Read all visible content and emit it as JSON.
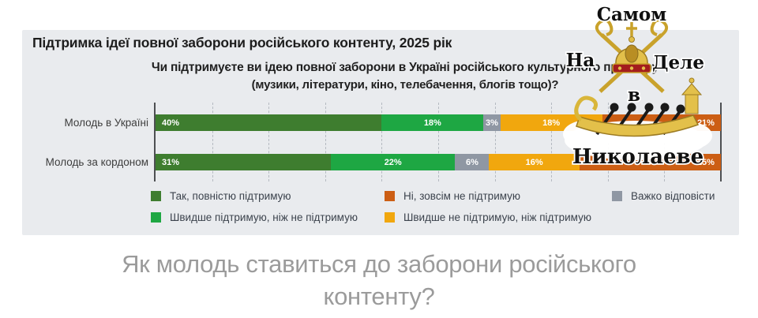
{
  "chart_data": {
    "type": "bar",
    "stacked": true,
    "orientation": "horizontal",
    "title": "Підтримка ідеї повної заборони російського контенту, 2025 рік",
    "subtitle_line1": "Чи підтримуєте ви ідею повної заборони в Україні російського культурного простору",
    "subtitle_line2": "(музики, літератури, кіно, телебачення, блогів тощо)?",
    "categories": [
      "Молодь в Україні",
      "Молодь за кордоном"
    ],
    "series": [
      {
        "name": "Так, повністю підтримую",
        "color": "#3e7d2f",
        "values": [
          40,
          31
        ]
      },
      {
        "name": "Швидше підтримую, ніж не підтримую",
        "color": "#1ea743",
        "values": [
          18,
          22
        ]
      },
      {
        "name": "Важко відповісти",
        "color": "#8f97a3",
        "values": [
          3,
          6
        ]
      },
      {
        "name": "Швидше не підтримую, ніж підтримую",
        "color": "#f1a70e",
        "values": [
          18,
          16
        ]
      },
      {
        "name": "Ні, зовсім не підтримую",
        "color": "#cc5e14",
        "values": [
          21,
          25
        ]
      }
    ],
    "xlim": [
      0,
      100
    ],
    "gridline_step": 10,
    "value_suffix": "%",
    "grid": true,
    "legend_position": "bottom"
  },
  "caption": {
    "line1": "Як молодь ставиться до заборони російського",
    "line2": "контенту?"
  },
  "watermark": {
    "word1": "Самом",
    "word2": "На",
    "word3": "Деле",
    "word4": "в",
    "word5": "Николаеве"
  },
  "colors": {
    "panel_background": "#e9ebee",
    "axis": "#4d4f52",
    "gridline": "#b5bac1",
    "caption_text": "#9b9b9b"
  }
}
